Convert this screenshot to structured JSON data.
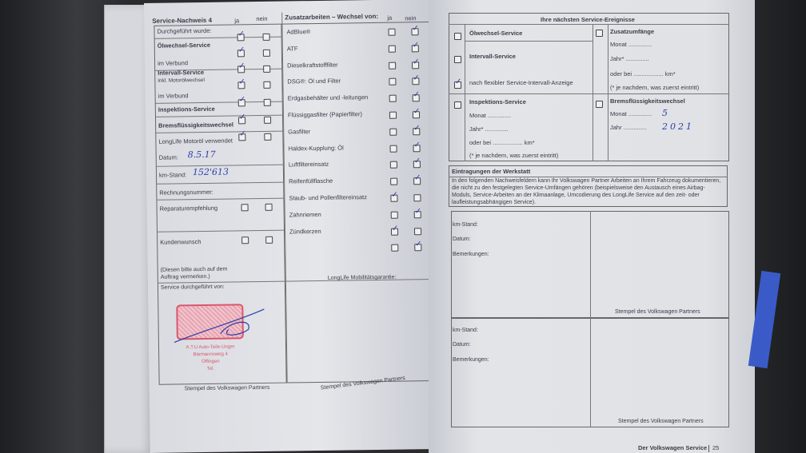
{
  "left_page": {
    "title": "Service-Nachweis 4",
    "col_ja": "ja",
    "col_nein": "nein",
    "rows": [
      {
        "label": "Durchgeführt wurde:",
        "bold": false
      },
      {
        "label": "Ölwechsel-Service",
        "bold": true
      },
      {
        "label": "im Verbund",
        "bold": false
      },
      {
        "label": "Intervall-Service",
        "bold": true
      },
      {
        "label": "inkl. Motorölwechsel",
        "bold": false
      },
      {
        "label": "im Verbund",
        "bold": false
      },
      {
        "label": "Inspektions-Service",
        "bold": true
      },
      {
        "label": "Bremsflüssigkeitswechsel",
        "bold": true
      },
      {
        "label": "LongLife Motoröl verwendet",
        "bold": false
      }
    ],
    "service_checks": [
      {
        "ja": true,
        "nein": false
      },
      {
        "ja": true,
        "nein": false
      },
      {
        "ja": true,
        "nein": false
      },
      {
        "ja": true,
        "nein": false
      },
      {
        "ja": true,
        "nein": false
      },
      {
        "ja": true,
        "nein": false
      },
      {
        "ja": true,
        "nein": false
      }
    ],
    "datum_label": "Datum:",
    "datum_value": "8.5.17",
    "km_label": "km-Stand:",
    "km_value": "152'613",
    "rechnung_label": "Rechnungsnummer:",
    "reparatur_label": "Reparaturempfehlung",
    "kundenwunsch_label": "Kundenwunsch",
    "note_line1": "(Diesen bitte auch auf dem",
    "note_line2": "Auftrag vermerken.)",
    "durchgefuehrt_von": "Service durchgeführt von:",
    "stamp_lines": [
      "A.T.U Auto-Teile-Unger",
      "Bärmannsweg 4",
      "Offingen",
      "Tel."
    ],
    "stempel_label": "Stempel des Volkswagen Partners",
    "zusatz_title": "Zusatzarbeiten – Wechsel von:",
    "zusatz_items": [
      {
        "label": "AdBlue®",
        "ja": false,
        "nein": true
      },
      {
        "label": "ATF",
        "ja": false,
        "nein": true
      },
      {
        "label": "Dieselkraftstofffilter",
        "ja": false,
        "nein": true
      },
      {
        "label": "DSG®: Öl und Filter",
        "ja": false,
        "nein": true
      },
      {
        "label": "Erdgasbehälter und -leitungen",
        "ja": false,
        "nein": true
      },
      {
        "label": "Flüssiggasfilter (Papierfilter)",
        "ja": false,
        "nein": true
      },
      {
        "label": "Gasfilter",
        "ja": false,
        "nein": true
      },
      {
        "label": "Haldex-Kupplung: Öl",
        "ja": false,
        "nein": true
      },
      {
        "label": "Luftfiltereinsatz",
        "ja": false,
        "nein": true
      },
      {
        "label": "Reifenfüllflasche",
        "ja": false,
        "nein": true
      },
      {
        "label": "Staub- und Pollenfiltereinsatz",
        "ja": true,
        "nein": false
      },
      {
        "label": "Zahnriemen",
        "ja": false,
        "nein": true
      },
      {
        "label": "Zündkerzen",
        "ja": true,
        "nein": false
      },
      {
        "label": "",
        "ja": false,
        "nein": true
      }
    ],
    "mobilitaet_label": "LongLife Mobilitätsgarantie:",
    "stempel_label2": "Stempel des Volkswagen Partners"
  },
  "right_page": {
    "next_title": "Ihre nächsten Service-Ereignisse",
    "oelwechsel": "Ölwechsel-Service",
    "intervall": "Intervall-Service",
    "flex": "nach flexibler Service-Intervall-Anzeige",
    "flex_checked": true,
    "zusatz": "Zusatzumfänge",
    "monat": "Monat ..............",
    "jahr": "Jahr* ..............",
    "oder_bei": "oder bei .................. km*",
    "je_nachdem": "(* je nachdem, was zuerst eintritt)",
    "inspektion": "Inspektions-Service",
    "brems": "Bremsflüssigkeitswechsel",
    "brems_monat": "5",
    "brems_jahr": "2021",
    "brems_monat_label": "Monat ..............",
    "brems_jahr_label": "Jahr ..............",
    "werkstatt_title": "Eintragungen der Werkstatt",
    "werkstatt_text": "In den folgenden Nachweisfeldern kann Ihr Volkswagen Partner Arbeiten an Ihrem Fahrzeug dokumentieren, die nicht zu den festgelegten Service-Umfängen gehören (beispielsweise den Austausch eines Airbag-Moduls, Service-Arbeiten an der Klimaanlage, Umcodierung des LongLife Service auf den zeit- oder laufleistungsabhängigen Service).",
    "km_label": "km-Stand:",
    "datum_label": "Datum:",
    "bemerkungen_label": "Bemerkungen:",
    "stempel_label": "Stempel des Volkswagen Partners",
    "footer": "Der Volkswagen Service",
    "page_number": "25"
  }
}
